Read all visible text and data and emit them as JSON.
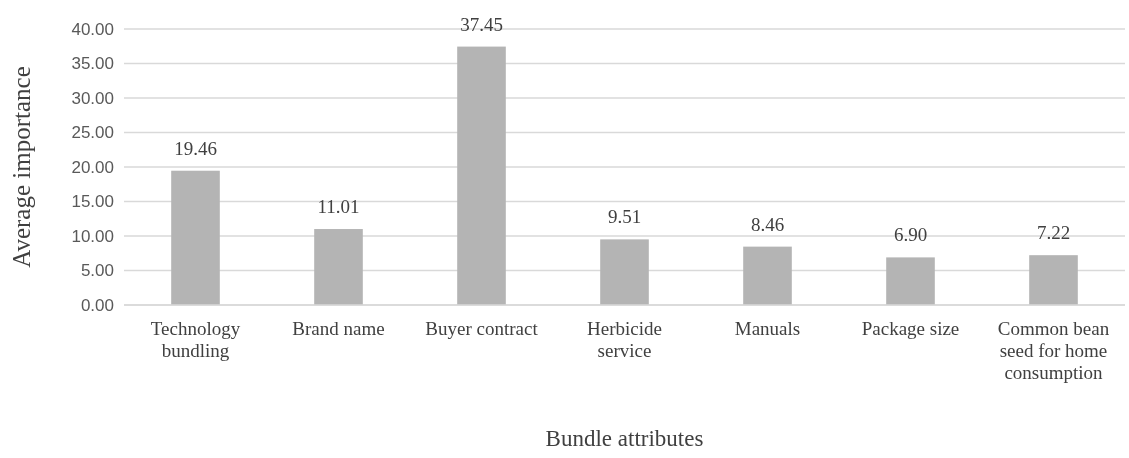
{
  "chart_data": {
    "type": "bar",
    "xlabel": "Bundle attributes",
    "ylabel": "Average importance",
    "categories": [
      "Technology bundling",
      "Brand name",
      "Buyer contract",
      "Herbicide service",
      "Manuals",
      "Package size",
      "Common bean seed for home consumption"
    ],
    "values": [
      19.46,
      11.01,
      37.45,
      9.51,
      8.46,
      6.9,
      7.22
    ],
    "value_labels": [
      "19.46",
      "11.01",
      "37.45",
      "9.51",
      "8.46",
      "6.90",
      "7.22"
    ],
    "color": "#b4b4b4",
    "ylim": [
      0,
      40
    ],
    "yticks": [
      {
        "value": 0,
        "label": "0.00"
      },
      {
        "value": 5,
        "label": "5.00"
      },
      {
        "value": 10,
        "label": "10.00"
      },
      {
        "value": 15,
        "label": "15.00"
      },
      {
        "value": 20,
        "label": "20.00"
      },
      {
        "value": 25,
        "label": "25.00"
      },
      {
        "value": 30,
        "label": "30.00"
      },
      {
        "value": 35,
        "label": "35.00"
      },
      {
        "value": 40,
        "label": "40.00"
      }
    ],
    "grid": "y"
  }
}
